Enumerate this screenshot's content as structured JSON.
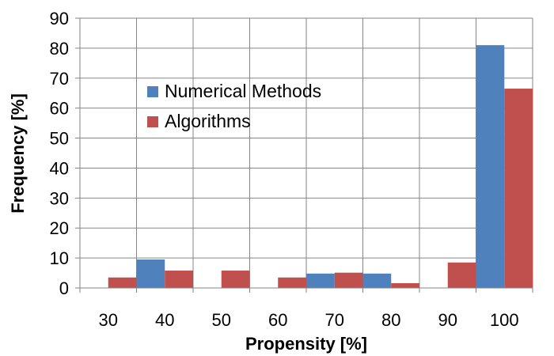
{
  "chart_data": {
    "type": "bar",
    "xlabel": "Propensity [%]",
    "ylabel": "Frequency [%]",
    "categories": [
      "30",
      "40",
      "50",
      "60",
      "70",
      "80",
      "90",
      "100"
    ],
    "ylim": [
      0,
      90
    ],
    "yticks": [
      0,
      10,
      20,
      30,
      40,
      50,
      60,
      70,
      80,
      90
    ],
    "grid": true,
    "legend": "top-left",
    "series": [
      {
        "name": "Numerical Methods",
        "color": "#4F81BD",
        "values": [
          0,
          9.5,
          0,
          0,
          4.8,
          4.8,
          0,
          81
        ]
      },
      {
        "name": "Algorithms",
        "color": "#C0504D",
        "values": [
          3.5,
          5.8,
          5.8,
          3.5,
          5.1,
          1.6,
          8.5,
          66.5
        ]
      }
    ]
  }
}
